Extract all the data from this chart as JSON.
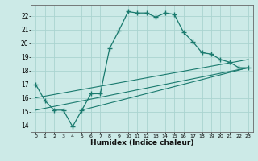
{
  "title": "",
  "xlabel": "Humidex (Indice chaleur)",
  "bg_color": "#cceae7",
  "grid_color": "#aad4d0",
  "line_color": "#1a7a6e",
  "xlim": [
    -0.5,
    23.5
  ],
  "ylim": [
    13.5,
    22.8
  ],
  "yticks": [
    14,
    15,
    16,
    17,
    18,
    19,
    20,
    21,
    22
  ],
  "xticks": [
    0,
    1,
    2,
    3,
    4,
    5,
    6,
    7,
    8,
    9,
    10,
    11,
    12,
    13,
    14,
    15,
    16,
    17,
    18,
    19,
    20,
    21,
    22,
    23
  ],
  "main_line_x": [
    0,
    1,
    2,
    3,
    4,
    5,
    6,
    7,
    8,
    9,
    10,
    11,
    12,
    13,
    14,
    15,
    16,
    17,
    18,
    19,
    20,
    21,
    22,
    23
  ],
  "main_line_y": [
    17.0,
    15.8,
    15.1,
    15.1,
    13.9,
    15.1,
    16.3,
    16.3,
    19.6,
    20.9,
    22.3,
    22.2,
    22.2,
    21.9,
    22.2,
    22.1,
    20.8,
    20.1,
    19.3,
    19.2,
    18.8,
    18.6,
    18.2,
    18.2
  ],
  "trend_line1_x": [
    0,
    23
  ],
  "trend_line1_y": [
    16.0,
    18.8
  ],
  "trend_line2_x": [
    0,
    23
  ],
  "trend_line2_y": [
    15.1,
    18.2
  ],
  "trend_line3_x": [
    5,
    23
  ],
  "trend_line3_y": [
    15.1,
    18.2
  ]
}
